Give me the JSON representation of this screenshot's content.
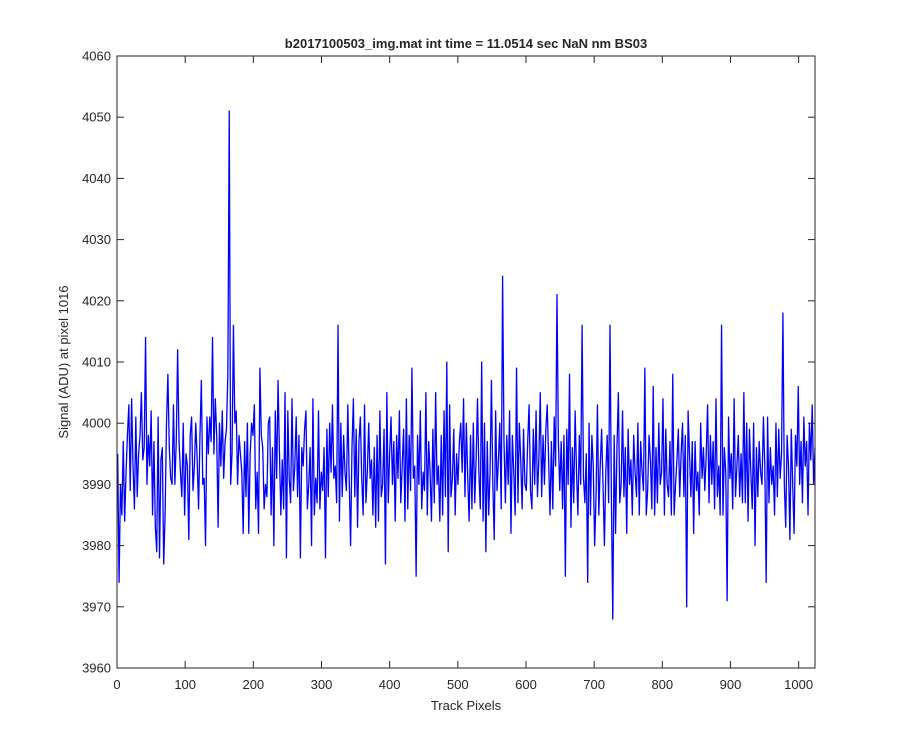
{
  "chart_data": {
    "type": "line",
    "title": "b2017100503_img.mat int time = 11.0514 sec  NaN nm BS03",
    "xlabel": "Track Pixels",
    "ylabel": "Signal (ADU) at pixel 1016",
    "xlim": [
      0,
      1024
    ],
    "ylim": [
      3960,
      4060
    ],
    "xticks": [
      0,
      100,
      200,
      300,
      400,
      500,
      600,
      700,
      800,
      900,
      1000
    ],
    "yticks": [
      3960,
      3970,
      3980,
      3990,
      4000,
      4010,
      4020,
      4030,
      4040,
      4050,
      4060
    ],
    "grid": false,
    "series_color": "#0000ff",
    "series": [
      {
        "name": "",
        "x_start": 1,
        "x_step": 1,
        "values": [
          3995,
          3974,
          3990,
          3985,
          3997,
          3984,
          3992,
          3998,
          4003,
          3989,
          4004,
          3993,
          3986,
          4001,
          3988,
          3995,
          3998,
          4005,
          3994,
          3996,
          4014,
          3990,
          3998,
          3993,
          4002,
          3985,
          3997,
          3983,
          3979,
          4001,
          3978,
          3994,
          3996,
          3977,
          3985,
          4000,
          4008,
          3996,
          3991,
          3990,
          4003,
          3990,
          3997,
          4012,
          3997,
          3992,
          3988,
          4000,
          3985,
          3995,
          3993,
          3981,
          3998,
          4001,
          3989,
          3993,
          4000,
          3994,
          3986,
          3998,
          4007,
          3990,
          3991,
          3980,
          4001,
          3995,
          4001,
          3997,
          4014,
          3995,
          4004,
          3998,
          3983,
          4000,
          3993,
          4002,
          3991,
          3997,
          3999,
          4008,
          4051,
          3990,
          3995,
          4016,
          4000,
          4002,
          3990,
          3998,
          3995,
          3992,
          3982,
          3997,
          3988,
          4000,
          3982,
          3995,
          4000,
          3998,
          4003,
          3986,
          3992,
          3982,
          4009,
          3998,
          3996,
          3986,
          3990,
          3988,
          4000,
          4001,
          3985,
          3996,
          3980,
          4002,
          3991,
          4007,
          3995,
          3985,
          3994,
          3986,
          4005,
          3978,
          4002,
          3991,
          3987,
          4004,
          3989,
          3993,
          4001,
          3988,
          3998,
          3978,
          3996,
          3993,
          3999,
          4002,
          3986,
          3990,
          3996,
          3980,
          4004,
          3985,
          3991,
          3987,
          4002,
          3986,
          3992,
          3989,
          3996,
          3978,
          3999,
          3988,
          4000,
          3992,
          4003,
          3991,
          3993,
          3987,
          4016,
          3984,
          4000,
          3988,
          3998,
          3992,
          3989,
          4003,
          3991,
          3980,
          3996,
          4004,
          3988,
          3999,
          3983,
          3997,
          4001,
          3991,
          3985,
          4003,
          3987,
          3992,
          4000,
          3991,
          3994,
          3985,
          3996,
          3983,
          3998,
          3984,
          4002,
          3988,
          3990,
          3999,
          3977,
          4005,
          3987,
          3995,
          4001,
          3990,
          3997,
          3984,
          3998,
          3991,
          4002,
          3987,
          3993,
          3999,
          3984,
          4004,
          3986,
          3998,
          3989,
          4009,
          3991,
          3993,
          3975,
          3998,
          3990,
          4002,
          3986,
          3992,
          3989,
          4005,
          3985,
          3997,
          3992,
          3984,
          3999,
          3987,
          4005,
          3990,
          3993,
          3984,
          3998,
          3985,
          4002,
          3988,
          4010,
          3979,
          4003,
          3988,
          3991,
          3999,
          3985,
          3995,
          3990,
          3997,
          4000,
          3992,
          4004,
          3988,
          4000,
          3991,
          3984,
          3998,
          3986,
          4000,
          3987,
          3994,
          4004,
          3992,
          3986,
          4010,
          3984,
          4000,
          3979,
          3997,
          3985,
          3992,
          4007,
          3990,
          3981,
          4002,
          3989,
          3994,
          4000,
          3986,
          4024,
          3997,
          3987,
          3998,
          3990,
          4002,
          3982,
          3998,
          3992,
          3985,
          4009,
          3987,
          4000,
          3994,
          3986,
          3999,
          3990,
          3989,
          3997,
          4003,
          3989,
          3986,
          3999,
          3990,
          4002,
          3988,
          3994,
          4005,
          3988,
          3998,
          3990,
          3999,
          4003,
          3994,
          3985,
          3997,
          3986,
          4001,
          3993,
          4021,
          3997,
          3989,
          3997,
          3986,
          3998,
          3975,
          3999,
          3990,
          4008,
          3983,
          3996,
          3987,
          4002,
          3992,
          3985,
          3998,
          3990,
          4016,
          3991,
          3987,
          3995,
          3974,
          4000,
          3985,
          3998,
          3993,
          3980,
          3988,
          4003,
          3985,
          3993,
          3999,
          3990,
          3980,
          3992,
          3998,
          3987,
          4016,
          3988,
          3968,
          3998,
          3982,
          3996,
          4005,
          3987,
          3990,
          4002,
          3988,
          3996,
          3982,
          3999,
          3990,
          3994,
          3985,
          3998,
          3992,
          3988,
          4000,
          3985,
          3997,
          3992,
          3989,
          4009,
          3985,
          3989,
          3998,
          3994,
          3986,
          4006,
          3985,
          3996,
          3987,
          4000,
          3990,
          3992,
          4004,
          3985,
          3999,
          3990,
          3988,
          3997,
          3985,
          4008,
          3985,
          3990,
          3994,
          3999,
          3988,
          3995,
          4000,
          3988,
          3998,
          3970,
          4002,
          3995,
          3988,
          3997,
          3982,
          3997,
          3989,
          3992,
          3985,
          4000,
          3991,
          3996,
          3989,
          3995,
          4003,
          3987,
          3998,
          3990,
          3997,
          3986,
          4004,
          3988,
          3993,
          3985,
          4016,
          3985,
          3996,
          3992,
          3971,
          4001,
          3991,
          3995,
          3986,
          4004,
          3988,
          3993,
          3998,
          3988,
          3995,
          3987,
          4005,
          3987,
          4000,
          3984,
          3999,
          3992,
          3986,
          4000,
          3980,
          3996,
          3988,
          3997,
          3992,
          3990,
          4001,
          3993,
          3974,
          4001,
          3987,
          3996,
          3990,
          3993,
          3985,
          4000,
          3988,
          3999,
          3991,
          3995,
          4018,
          3990,
          3983,
          3998,
          3993,
          3981,
          3999,
          3990,
          3982,
          3998,
          3993,
          4006,
          3990,
          3997,
          3987,
          4001,
          3993,
          3997,
          3985,
          4000,
          3994,
          4003,
          3990,
          3996
        ]
      }
    ]
  }
}
